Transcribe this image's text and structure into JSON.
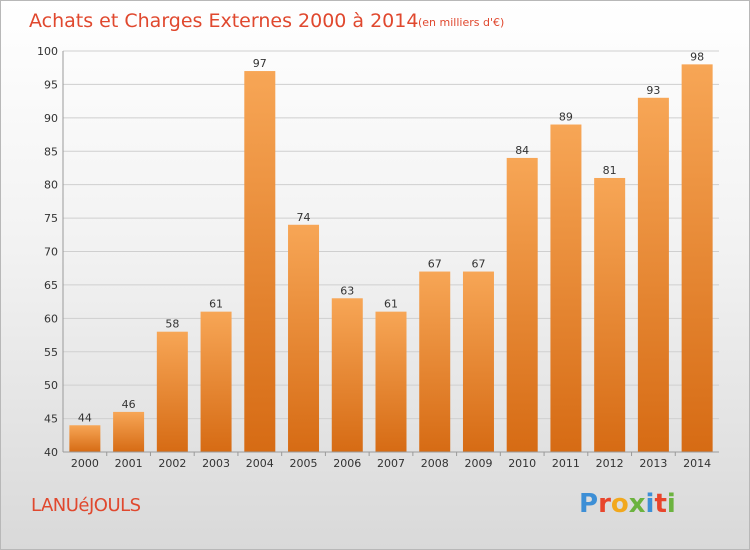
{
  "title": "Achats et Charges Externes 2000 à 2014",
  "subtitle": "(en milliers d'€)",
  "commune": "LANUéJOULS",
  "logo": {
    "letters": [
      {
        "ch": "P",
        "color": "#3d8fd6"
      },
      {
        "ch": "r",
        "color": "#e8452c"
      },
      {
        "ch": "o",
        "color": "#f2a81d"
      },
      {
        "ch": "x",
        "color": "#6cb33f"
      },
      {
        "ch": "i",
        "color": "#3d8fd6"
      },
      {
        "ch": "t",
        "color": "#e8452c"
      },
      {
        "ch": "i",
        "color": "#6cb33f"
      }
    ]
  },
  "colors": {
    "bar_top": "#f7a656",
    "bar_bottom": "#d66b14",
    "title": "#e0482e"
  },
  "chart_data": {
    "type": "bar",
    "categories": [
      "2000",
      "2001",
      "2002",
      "2003",
      "2004",
      "2005",
      "2006",
      "2007",
      "2008",
      "2009",
      "2010",
      "2011",
      "2012",
      "2013",
      "2014"
    ],
    "values": [
      44,
      46,
      58,
      61,
      97,
      74,
      63,
      61,
      67,
      67,
      84,
      89,
      81,
      93,
      98
    ],
    "ylim": [
      40,
      100
    ],
    "yticks": [
      40,
      45,
      50,
      55,
      60,
      65,
      70,
      75,
      80,
      85,
      90,
      95,
      100
    ],
    "grid": true
  }
}
